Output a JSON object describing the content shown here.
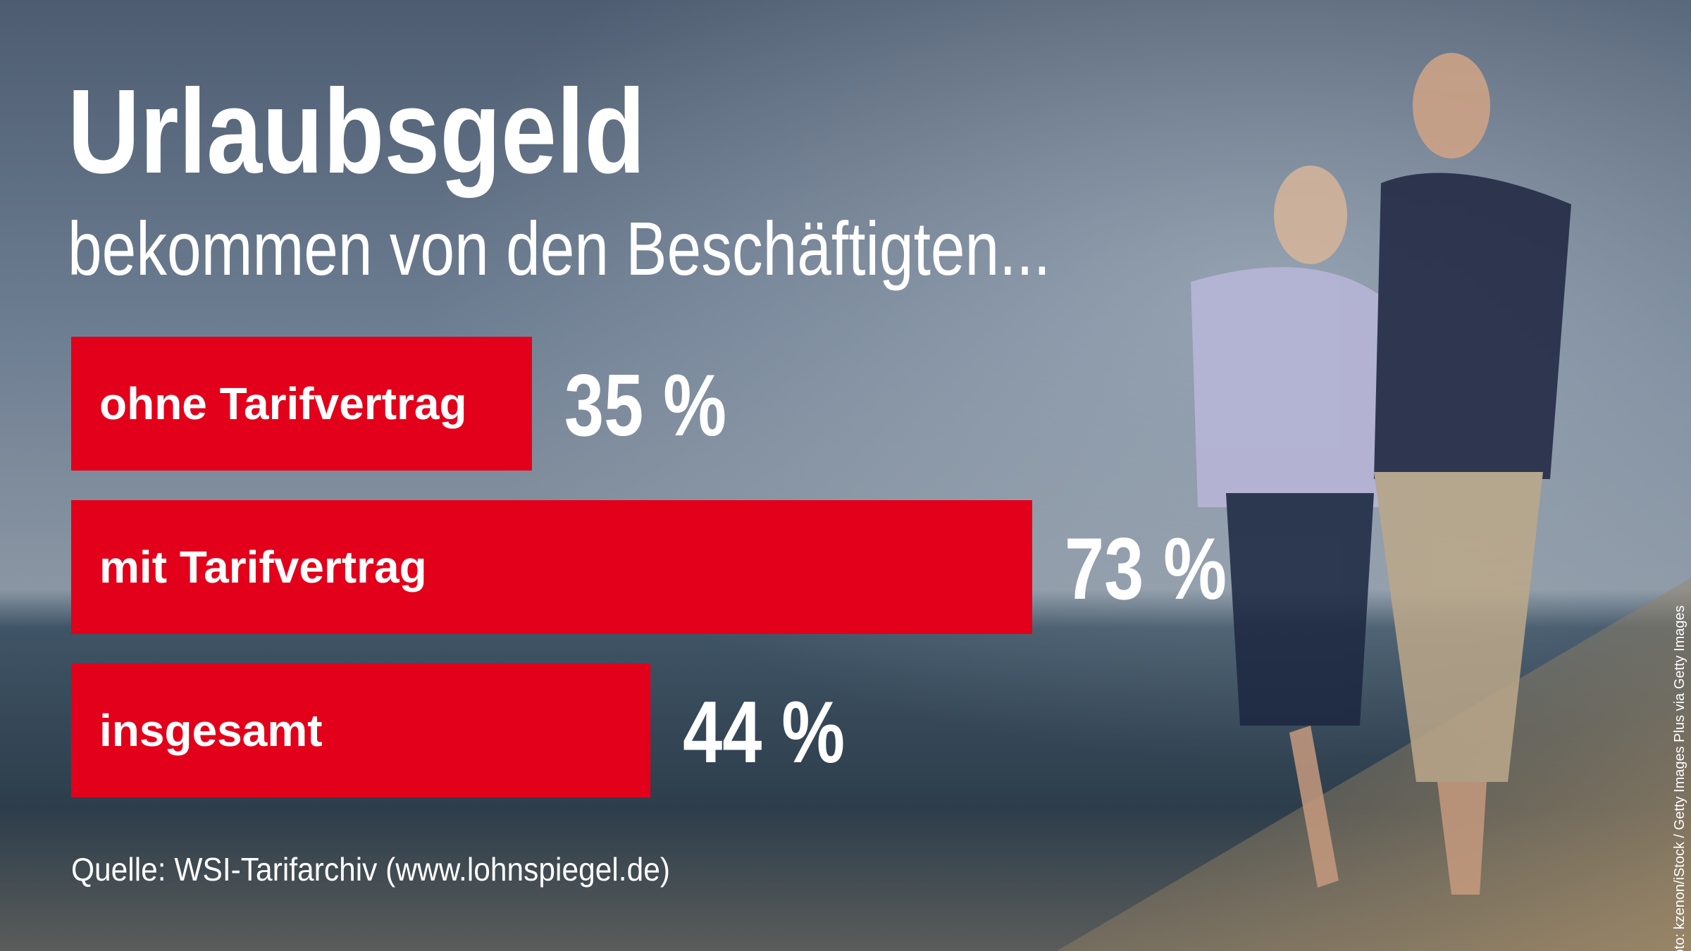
{
  "chart_data": {
    "type": "bar",
    "orientation": "horizontal",
    "title": "Urlaubsgeld",
    "subtitle": "bekommen von den Beschäftigten...",
    "categories": [
      "ohne Tarifvertrag",
      "mit Tarifvertrag",
      "insgesamt"
    ],
    "values": [
      35,
      73,
      44
    ],
    "value_labels": [
      "35 %",
      "73 %",
      "44 %"
    ],
    "color": "#e2001a",
    "source": "Quelle: WSI-Tarifarchiv (www.lohnspiegel.de)",
    "credit": "Foto: kzenon/iStock / Getty Images Plus via Getty Images"
  }
}
